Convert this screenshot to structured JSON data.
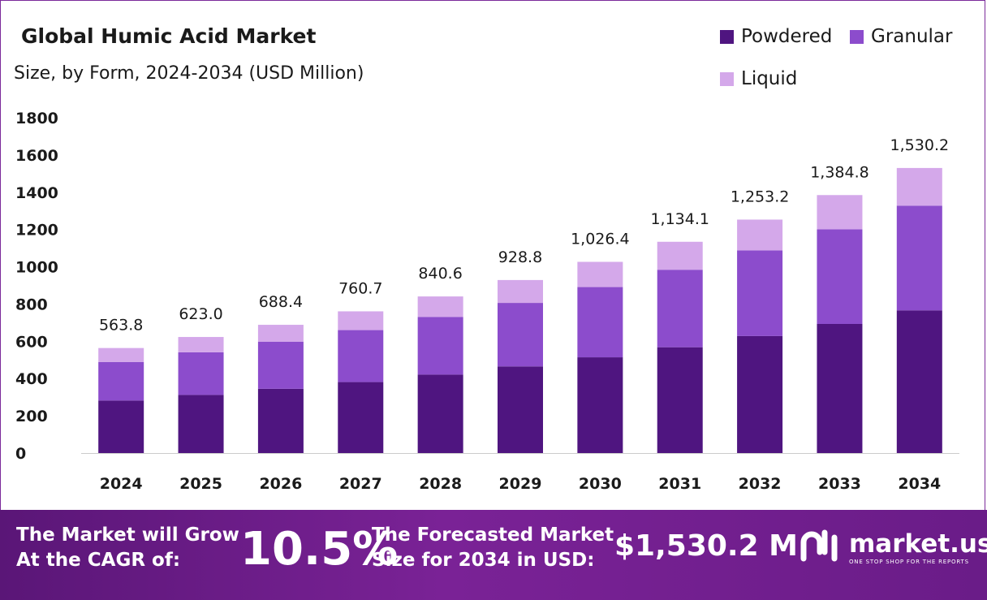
{
  "title": "Global Humic Acid Market",
  "subtitle": "Size, by Form, 2024-2034 (USD Million)",
  "colors": {
    "powdered": "#4f1580",
    "granular": "#8c4ccc",
    "liquid": "#d4a8ea",
    "footer": "#6a1c88"
  },
  "legend": [
    {
      "name": "Powdered",
      "color": "#4f1580"
    },
    {
      "name": "Granular",
      "color": "#8c4ccc"
    },
    {
      "name": "Liquid",
      "color": "#d4a8ea"
    }
  ],
  "chart_data": {
    "type": "bar",
    "stacked": true,
    "title": "Global Humic Acid Market",
    "subtitle": "Size, by Form, 2024-2034 (USD Million)",
    "categories": [
      "2024",
      "2025",
      "2026",
      "2027",
      "2028",
      "2029",
      "2030",
      "2031",
      "2032",
      "2033",
      "2034"
    ],
    "series": [
      {
        "name": "Powdered",
        "values": [
          282,
          312,
          345,
          381,
          421,
          465,
          514,
          568,
          628,
          693,
          766
        ]
      },
      {
        "name": "Granular",
        "values": [
          207,
          229,
          253,
          279,
          309,
          341,
          377,
          416,
          460,
          508,
          562
        ]
      },
      {
        "name": "Liquid",
        "values": [
          74.8,
          82,
          90.4,
          100.7,
          110.6,
          122.8,
          135.4,
          150.1,
          165.2,
          183.8,
          202.2
        ]
      }
    ],
    "totals": [
      563.8,
      623.0,
      688.4,
      760.7,
      840.6,
      928.8,
      1026.4,
      1134.1,
      1253.2,
      1384.8,
      1530.2
    ],
    "total_labels": [
      "563.8",
      "623.0",
      "688.4",
      "760.7",
      "840.6",
      "928.8",
      "1,026.4",
      "1,134.1",
      "1,253.2",
      "1,384.8",
      "1,530.2"
    ],
    "yticks": [
      "0",
      "200",
      "400",
      "600",
      "800",
      "1000",
      "1200",
      "1400",
      "1600",
      "1800"
    ],
    "ylim": [
      0,
      1800
    ],
    "grid": false,
    "legend_position": "top-right"
  },
  "footer": {
    "grow_line1": "The Market will Grow",
    "grow_line2": "At the CAGR of:",
    "cagr": "10.5%",
    "forecast_line1": "The Forecasted Market",
    "forecast_line2": "Size for 2034 in USD:",
    "forecast_value": "$1,530.2 M",
    "brand": "market.us",
    "tagline": "ONE STOP SHOP FOR THE REPORTS"
  }
}
